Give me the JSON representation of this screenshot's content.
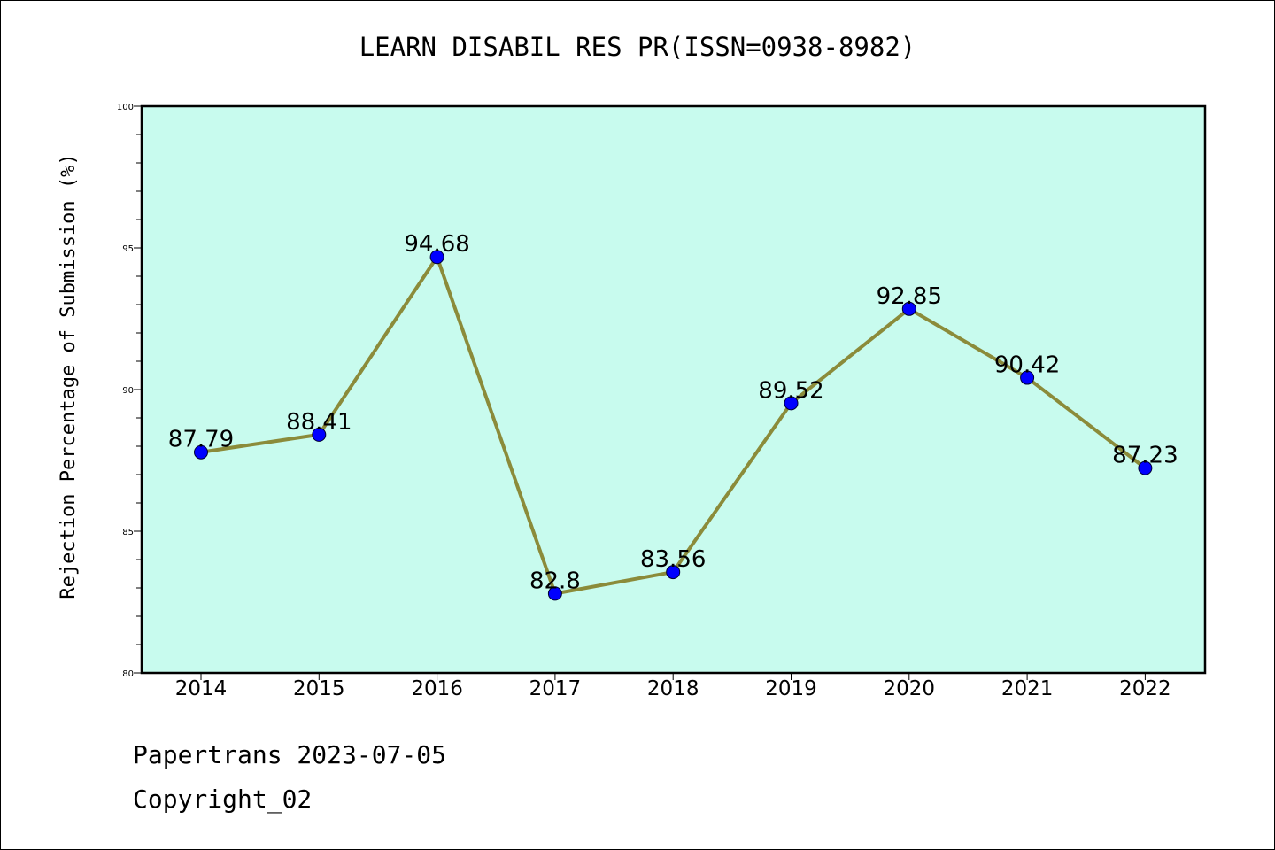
{
  "chart_data": {
    "type": "line",
    "title": "LEARN DISABIL RES PR(ISSN=0938-8982)",
    "xlabel": "",
    "ylabel": "Rejection Percentage of Submission (%)",
    "categories": [
      "2014",
      "2015",
      "2016",
      "2017",
      "2018",
      "2019",
      "2020",
      "2021",
      "2022"
    ],
    "series": [
      {
        "values": [
          87.79,
          88.41,
          94.68,
          82.8,
          83.56,
          89.52,
          92.85,
          90.42,
          87.23
        ]
      }
    ],
    "data_labels": [
      "87.79",
      "88.41",
      "94.68",
      "82.8",
      "83.56",
      "89.52",
      "92.85",
      "90.42",
      "87.23"
    ],
    "ylim": [
      80,
      100
    ],
    "yticks": [
      "80",
      "85",
      "90",
      "95",
      "100"
    ],
    "grid": false,
    "colors": {
      "plot_background": "#c8fbee",
      "line": "#8b8b3a",
      "marker": "#0000ff"
    }
  },
  "footer": {
    "date": "Papertrans 2023-07-05",
    "copyright": "Copyright_02"
  }
}
